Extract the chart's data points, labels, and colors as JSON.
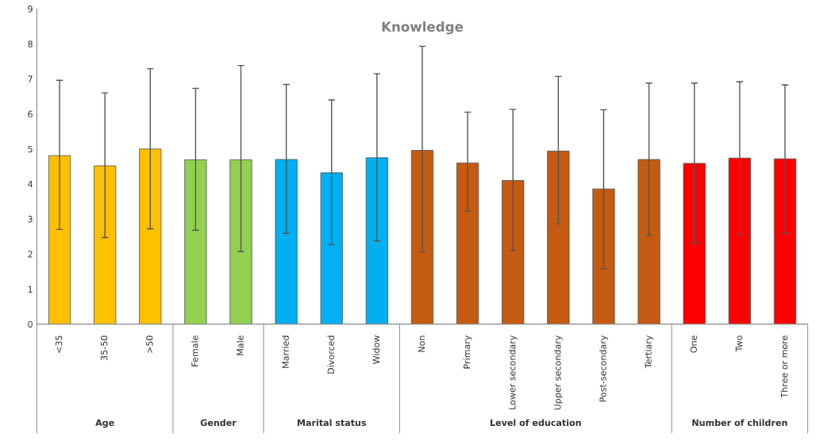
{
  "chart_data": {
    "type": "bar",
    "title": "Knowledge",
    "categories": [
      "<35",
      "35-50",
      ">50",
      "Female",
      "Male",
      "Married",
      "Divorced",
      "Widow",
      "Non",
      "Primary",
      "Lower secondary",
      "Upper secondary",
      "Post-secondary",
      "Tertiary",
      "One",
      "Two",
      "Three or more"
    ],
    "values": [
      4.81,
      4.52,
      5.0,
      4.69,
      4.69,
      4.7,
      4.32,
      4.75,
      4.96,
      4.6,
      4.1,
      4.94,
      3.86,
      4.7,
      4.59,
      4.74,
      4.72
    ],
    "errors": [
      [
        2.7,
        6.96
      ],
      [
        2.47,
        6.6
      ],
      [
        2.72,
        7.29
      ],
      [
        2.68,
        6.73
      ],
      [
        2.07,
        7.38
      ],
      [
        2.59,
        6.84
      ],
      [
        2.27,
        6.4
      ],
      [
        2.37,
        7.15
      ],
      [
        2.06,
        7.93
      ],
      [
        3.22,
        6.05
      ],
      [
        2.1,
        6.13
      ],
      [
        2.86,
        7.07
      ],
      [
        1.58,
        6.12
      ],
      [
        2.54,
        6.88
      ],
      [
        2.3,
        6.88
      ],
      [
        2.56,
        6.92
      ],
      [
        2.6,
        6.83
      ]
    ],
    "colors": [
      "#ffc000",
      "#ffc000",
      "#ffc000",
      "#92d050",
      "#92d050",
      "#00b0f0",
      "#00b0f0",
      "#00b0f0",
      "#c55a11",
      "#c55a11",
      "#c55a11",
      "#c55a11",
      "#c55a11",
      "#c55a11",
      "#ff0000",
      "#ff0000",
      "#ff0000"
    ],
    "annotations": [
      "Age",
      "Gender",
      "Marital status",
      "Level of education",
      "Number of children"
    ],
    "ylim": [
      0,
      9
    ],
    "yticks": [
      0,
      1,
      2,
      3,
      4,
      5,
      6,
      7,
      8,
      9
    ],
    "grid": false
  }
}
